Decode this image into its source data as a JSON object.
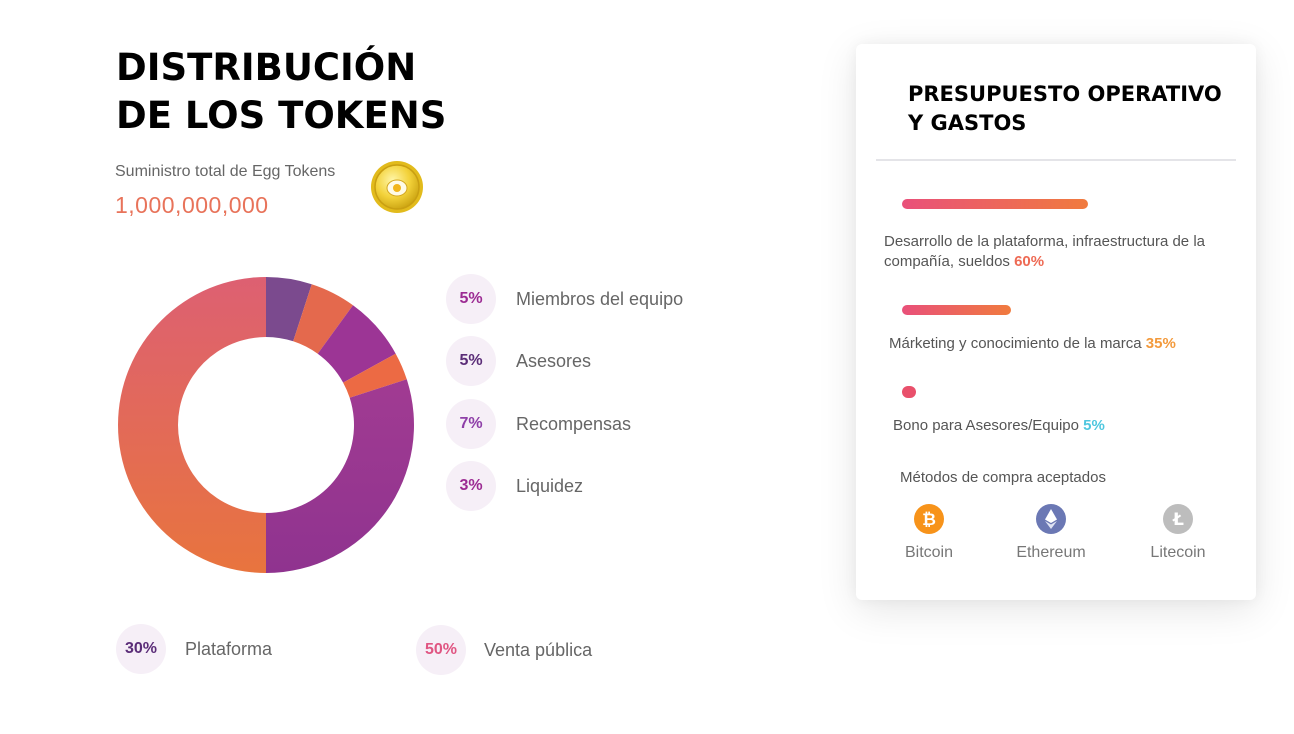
{
  "heading": {
    "line1": "DISTRIBUCIÓN",
    "line2": "DE LOS TOKENS"
  },
  "supply": {
    "label": "Suministro total de Egg Tokens",
    "value": "1,000,000,000"
  },
  "coin_icon": "egg-token-coin-icon",
  "distribution": [
    {
      "pct_label": "5%",
      "label": "Miembros del equipo",
      "value": 5,
      "color": "#7b4a8e",
      "text_color": "#9c2b93"
    },
    {
      "pct_label": "5%",
      "label": "Asesores",
      "value": 5,
      "color": "#e4694d",
      "text_color": "#5b2d78"
    },
    {
      "pct_label": "7%",
      "label": "Recompensas",
      "value": 7,
      "color": "#9c3595",
      "text_color": "#8e3fa8"
    },
    {
      "pct_label": "3%",
      "label": "Liquidez",
      "value": 3,
      "color": "#ec6a44",
      "text_color": "#9c2b93"
    },
    {
      "pct_label": "30%",
      "label": "Plataforma",
      "value": 30,
      "color": "#993691",
      "text_color": "#5b2d78"
    },
    {
      "pct_label": "50%",
      "label": "Venta pública",
      "value": 50,
      "color": "#e3705a",
      "text_color": "#e05582"
    }
  ],
  "budget": {
    "title_line1": "PRESUPUESTO OPERATIVO",
    "title_line2": "Y GASTOS",
    "items": [
      {
        "text": "Desarrollo de la plataforma, infraestructura de la compañía, sueldos",
        "pct": "60%",
        "value": 60,
        "pct_color": "#ee6a54"
      },
      {
        "text": "Márketing y conocimiento de la marca",
        "pct": "35%",
        "value": 35,
        "pct_color": "#f39a3c"
      },
      {
        "text": "Bono para Asesores/Equipo",
        "pct": "5%",
        "value": 5,
        "pct_color": "#4fc7df"
      }
    ],
    "payment_title": "Métodos de compra aceptados",
    "payment_methods": [
      {
        "label": "Bitcoin",
        "icon": "bitcoin-icon",
        "color": "#f7931a"
      },
      {
        "label": "Ethereum",
        "icon": "ethereum-icon",
        "color": "#6b78b4"
      },
      {
        "label": "Litecoin",
        "icon": "litecoin-icon",
        "color": "#bdbdbd"
      }
    ]
  }
}
